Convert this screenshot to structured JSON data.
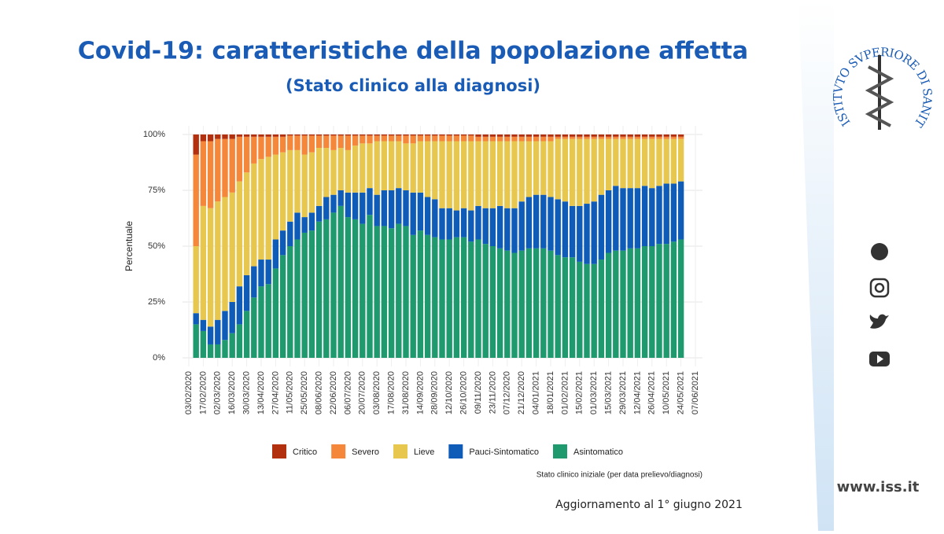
{
  "header": {
    "title": "Covid-19: caratteristiche della popolazione affetta",
    "subtitle": "(Stato clinico alla diagnosi)"
  },
  "logo": "ISTITVTO SVPERIORE DI SANITÀ",
  "website": "www.iss.it",
  "footer": "Aggiornamento al 1° giugno 2021",
  "chart_data": {
    "type": "stacked_bar_100",
    "y_label": "Percentuale",
    "x_label": "Stato clinico iniziale (per data prelievo/diagnosi)",
    "ylim": [
      0,
      100
    ],
    "yticks": [
      {
        "value": 0,
        "label": "0%"
      },
      {
        "value": 25,
        "label": "25%"
      },
      {
        "value": 50,
        "label": "50%"
      },
      {
        "value": 75,
        "label": "75%"
      },
      {
        "value": 100,
        "label": "100%"
      }
    ],
    "grid": true,
    "categories": [
      "03/02/2020",
      null,
      "17/02/2020",
      null,
      "02/03/2020",
      null,
      "16/03/2020",
      null,
      "30/03/2020",
      null,
      "13/04/2020",
      null,
      "27/04/2020",
      null,
      "11/05/2020",
      null,
      "25/05/2020",
      null,
      "08/06/2020",
      null,
      "22/06/2020",
      null,
      "06/07/2020",
      null,
      "20/07/2020",
      null,
      "03/08/2020",
      null,
      "17/08/2020",
      null,
      "31/08/2020",
      null,
      "14/09/2020",
      null,
      "28/09/2020",
      null,
      "12/10/2020",
      null,
      "26/10/2020",
      null,
      "09/11/2020",
      null,
      "23/11/2020",
      null,
      "07/12/2020",
      null,
      "21/12/2020",
      null,
      "04/01/2021",
      null,
      "18/01/2021",
      null,
      "01/02/2021",
      null,
      "15/02/2021",
      null,
      "01/03/2021",
      null,
      "15/03/2021",
      null,
      "29/03/2021",
      null,
      "12/04/2021",
      null,
      "26/04/2021",
      null,
      "10/05/2021",
      null,
      "24/05/2021",
      null,
      "07/06/2021"
    ],
    "series": [
      {
        "name": "Critico",
        "color": "#b3300f",
        "values": [
          null,
          9,
          3,
          3,
          2,
          2,
          2,
          1,
          1,
          1,
          1,
          1,
          1,
          1,
          0.5,
          0.5,
          0.5,
          0.5,
          0.5,
          0.5,
          0.5,
          0.5,
          0.5,
          0.5,
          0.5,
          0.5,
          0.5,
          0.5,
          0.5,
          0.5,
          0.5,
          0.5,
          0.5,
          0.5,
          0.5,
          0.5,
          0.5,
          0.5,
          0.5,
          0.5,
          1,
          1,
          1,
          1,
          1,
          1,
          1,
          1,
          1,
          1,
          1,
          1,
          1,
          1,
          1,
          1,
          1,
          1,
          1,
          1,
          1,
          1,
          1,
          1,
          1,
          1,
          1,
          1,
          1,
          null,
          null
        ]
      },
      {
        "name": "Severo",
        "color": "#f5873a",
        "values": [
          null,
          41,
          29,
          30,
          28,
          26,
          24,
          20,
          16,
          12,
          10,
          9,
          8,
          7,
          6.5,
          6.5,
          8.5,
          7.5,
          5.5,
          5.5,
          6.5,
          5.5,
          6.5,
          4.5,
          3.5,
          3.5,
          2.5,
          2.5,
          2.5,
          2.5,
          3.5,
          3.5,
          2.5,
          2.5,
          2.5,
          2.5,
          2.5,
          2.5,
          2.5,
          2.5,
          2,
          2,
          2,
          2,
          2,
          2,
          2,
          2,
          2,
          2,
          2,
          1,
          1,
          1,
          1,
          1,
          1,
          1,
          1,
          1,
          1,
          1,
          1,
          1,
          1,
          1,
          1,
          1,
          1,
          null,
          null
        ]
      },
      {
        "name": "Lieve",
        "color": "#e8c74f",
        "values": [
          null,
          30,
          51,
          53,
          53,
          51,
          49,
          47,
          46,
          46,
          45,
          46,
          38,
          35,
          32,
          28,
          28,
          27,
          26,
          22,
          20,
          19,
          19,
          21,
          22,
          20,
          24,
          22,
          22,
          21,
          21,
          22,
          23,
          25,
          26,
          30,
          30,
          31,
          30,
          31,
          29,
          30,
          30,
          29,
          30,
          30,
          27,
          25,
          24,
          24,
          25,
          27,
          28,
          30,
          30,
          29,
          28,
          25,
          23,
          21,
          22,
          22,
          22,
          21,
          22,
          21,
          20,
          20,
          19,
          null,
          null
        ]
      },
      {
        "name": "Pauci-Sintomatico",
        "color": "#0f5cb8",
        "values": [
          null,
          5,
          5,
          8,
          11,
          13,
          14,
          17,
          16,
          14,
          12,
          11,
          13,
          11,
          11,
          12,
          7,
          8,
          7,
          10,
          8,
          7,
          11,
          12,
          14,
          12,
          14,
          16,
          17,
          16,
          16,
          19,
          17,
          17,
          17,
          14,
          14,
          12,
          13,
          14,
          15,
          16,
          17,
          19,
          19,
          20,
          22,
          23,
          24,
          24,
          24,
          25,
          25,
          23,
          25,
          27,
          28,
          29,
          28,
          29,
          28,
          27,
          27,
          27,
          26,
          26,
          27,
          26,
          26,
          null,
          null
        ]
      },
      {
        "name": "Asintomatico",
        "color": "#1f9a6e",
        "values": [
          null,
          15,
          12,
          6,
          6,
          8,
          11,
          15,
          21,
          27,
          32,
          33,
          40,
          46,
          50,
          53,
          56,
          57,
          61,
          62,
          65,
          68,
          63,
          62,
          60,
          64,
          59,
          59,
          58,
          60,
          59,
          55,
          57,
          55,
          54,
          53,
          53,
          54,
          54,
          52,
          53,
          51,
          50,
          49,
          48,
          47,
          48,
          49,
          49,
          49,
          48,
          46,
          45,
          45,
          43,
          42,
          42,
          44,
          47,
          48,
          48,
          49,
          49,
          50,
          50,
          51,
          51,
          52,
          53,
          null,
          null
        ]
      }
    ]
  }
}
